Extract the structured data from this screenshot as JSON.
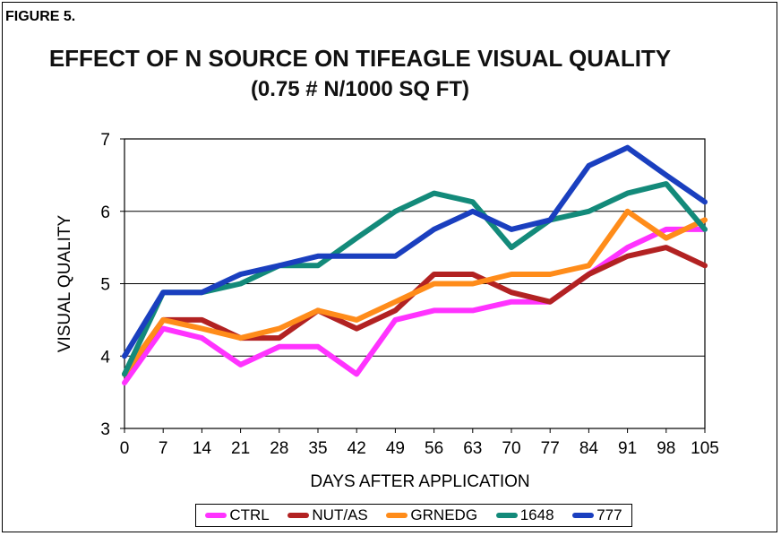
{
  "figure_label": "FIGURE 5.",
  "chart_data": {
    "type": "line",
    "title": "EFFECT OF N SOURCE ON TIFEAGLE VISUAL QUALITY",
    "subtitle": "(0.75 # N/1000 SQ FT)",
    "xlabel": "DAYS AFTER APPLICATION",
    "ylabel": "VISUAL QUALITY",
    "x": [
      0,
      7,
      14,
      21,
      28,
      35,
      42,
      49,
      56,
      63,
      70,
      77,
      84,
      91,
      98,
      105
    ],
    "ylim": [
      3,
      7
    ],
    "yticks": [
      3,
      4,
      5,
      6,
      7
    ],
    "grid": true,
    "legend_position": "bottom",
    "series": [
      {
        "name": "CTRL",
        "color": "#ff33ff",
        "values": [
          3.63,
          4.38,
          4.25,
          3.88,
          4.13,
          4.13,
          3.75,
          4.5,
          4.63,
          4.63,
          4.75,
          4.75,
          5.13,
          5.5,
          5.75,
          5.75
        ]
      },
      {
        "name": "NUT/AS",
        "color": "#b22222",
        "values": [
          3.75,
          4.5,
          4.5,
          4.25,
          4.25,
          4.63,
          4.38,
          4.63,
          5.13,
          5.13,
          4.88,
          4.75,
          5.13,
          5.38,
          5.5,
          5.25
        ]
      },
      {
        "name": "GRNEDG",
        "color": "#ff8c1a",
        "values": [
          3.75,
          4.5,
          4.38,
          4.25,
          4.38,
          4.63,
          4.5,
          4.75,
          5.0,
          5.0,
          5.13,
          5.13,
          5.25,
          6.0,
          5.63,
          5.88
        ]
      },
      {
        "name": "1648",
        "color": "#138a7a",
        "values": [
          3.75,
          4.88,
          4.88,
          5.0,
          5.25,
          5.25,
          5.63,
          6.0,
          6.25,
          6.13,
          5.5,
          5.88,
          6.0,
          6.25,
          6.38,
          5.75
        ]
      },
      {
        "name": "777",
        "color": "#1a3fbf",
        "values": [
          4.0,
          4.88,
          4.88,
          5.13,
          5.25,
          5.38,
          5.38,
          5.38,
          5.75,
          6.0,
          5.75,
          5.88,
          6.63,
          6.88,
          6.5,
          6.13
        ]
      }
    ]
  }
}
